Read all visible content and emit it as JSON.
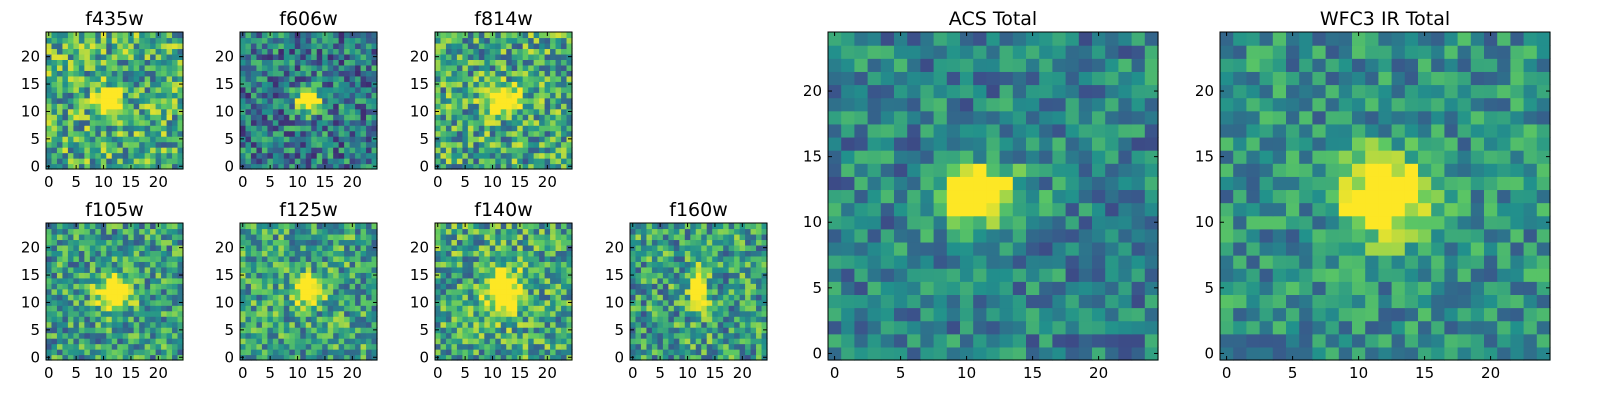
{
  "figure": {
    "colormap": "viridis",
    "colors": [
      "#440154",
      "#3b528b",
      "#21918c",
      "#5ec962",
      "#fde725"
    ]
  },
  "chart_data": [
    {
      "type": "heatmap",
      "title": "f435w",
      "grid_size": 25,
      "xticks": [
        0,
        5,
        10,
        15,
        20
      ],
      "yticks": [
        0,
        5,
        10,
        15,
        20
      ],
      "xlim": [
        0,
        24
      ],
      "ylim": [
        0,
        24
      ],
      "source_center": [
        11,
        12
      ],
      "source_size": [
        3,
        3
      ],
      "noise": 0.45,
      "seed": 11,
      "background": 0.62
    },
    {
      "type": "heatmap",
      "title": "f606w",
      "grid_size": 25,
      "xticks": [
        0,
        5,
        10,
        15,
        20
      ],
      "yticks": [
        0,
        5,
        10,
        15,
        20
      ],
      "xlim": [
        0,
        24
      ],
      "ylim": [
        0,
        24
      ],
      "source_center": [
        12,
        12
      ],
      "source_size": [
        3,
        3
      ],
      "noise": 0.4,
      "seed": 23,
      "background": 0.42
    },
    {
      "type": "heatmap",
      "title": "f814w",
      "grid_size": 25,
      "xticks": [
        0,
        5,
        10,
        15,
        20
      ],
      "yticks": [
        0,
        5,
        10,
        15,
        20
      ],
      "xlim": [
        0,
        24
      ],
      "ylim": [
        0,
        24
      ],
      "source_center": [
        12,
        12
      ],
      "source_size": [
        4,
        3
      ],
      "noise": 0.45,
      "seed": 37,
      "background": 0.6
    },
    {
      "type": "heatmap",
      "title": "f105w",
      "grid_size": 25,
      "xticks": [
        0,
        5,
        10,
        15,
        20
      ],
      "yticks": [
        0,
        5,
        10,
        15,
        20
      ],
      "xlim": [
        0,
        24
      ],
      "ylim": [
        0,
        24
      ],
      "source_center": [
        12,
        12
      ],
      "source_size": [
        4,
        4
      ],
      "noise": 0.4,
      "seed": 41,
      "background": 0.55
    },
    {
      "type": "heatmap",
      "title": "f125w",
      "grid_size": 25,
      "xticks": [
        0,
        5,
        10,
        15,
        20
      ],
      "yticks": [
        0,
        5,
        10,
        15,
        20
      ],
      "xlim": [
        0,
        24
      ],
      "ylim": [
        0,
        24
      ],
      "source_center": [
        12,
        12
      ],
      "source_size": [
        3,
        3
      ],
      "noise": 0.4,
      "seed": 53,
      "background": 0.58
    },
    {
      "type": "heatmap",
      "title": "f140w",
      "grid_size": 25,
      "xticks": [
        0,
        5,
        10,
        15,
        20
      ],
      "yticks": [
        0,
        5,
        10,
        15,
        20
      ],
      "xlim": [
        0,
        24
      ],
      "ylim": [
        0,
        24
      ],
      "source_center": [
        12,
        12
      ],
      "source_size": [
        4,
        5
      ],
      "noise": 0.42,
      "seed": 67,
      "background": 0.6
    },
    {
      "type": "heatmap",
      "title": "f160w",
      "grid_size": 25,
      "xticks": [
        0,
        5,
        10,
        15,
        20
      ],
      "yticks": [
        0,
        5,
        10,
        15,
        20
      ],
      "xlim": [
        0,
        24
      ],
      "ylim": [
        0,
        24
      ],
      "source_center": [
        12,
        12
      ],
      "source_size": [
        2,
        5
      ],
      "noise": 0.42,
      "seed": 79,
      "background": 0.56
    },
    {
      "type": "heatmap",
      "title": "ACS Total",
      "grid_size": 25,
      "xticks": [
        0,
        5,
        10,
        15,
        20
      ],
      "yticks": [
        0,
        5,
        10,
        15,
        20
      ],
      "xlim": [
        0,
        24
      ],
      "ylim": [
        0,
        24
      ],
      "source_center": [
        11,
        12
      ],
      "source_size": [
        4,
        3
      ],
      "noise": 0.3,
      "seed": 83,
      "background": 0.45
    },
    {
      "type": "heatmap",
      "title": "WFC3 IR Total",
      "grid_size": 25,
      "xticks": [
        0,
        5,
        10,
        15,
        20
      ],
      "yticks": [
        0,
        5,
        10,
        15,
        20
      ],
      "xlim": [
        0,
        24
      ],
      "ylim": [
        0,
        24
      ],
      "source_center": [
        12,
        12
      ],
      "source_size": [
        4,
        4
      ],
      "noise": 0.3,
      "seed": 97,
      "background": 0.5
    }
  ]
}
